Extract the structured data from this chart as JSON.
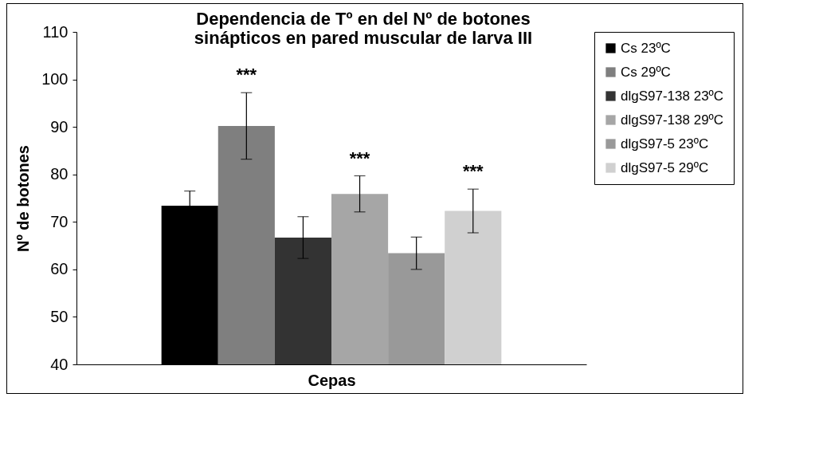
{
  "chart_data": {
    "type": "bar",
    "title": "Dependencia de Tº en del Nº de botones\nsinápticos en pared muscular de larva III",
    "xlabel": "Cepas",
    "ylabel": "Nº de botones",
    "categories": [
      null
    ],
    "series": [
      {
        "name": "Cs 23ºC",
        "color": "#000000",
        "values": [
          73.4
        ],
        "errors": [
          3.1
        ]
      },
      {
        "name": "Cs 29ºC",
        "color": "#7f7f7f",
        "values": [
          90.2
        ],
        "errors": [
          7
        ],
        "value_labels": [
          "***"
        ]
      },
      {
        "name": "dlgS97-138 23ºC",
        "color": "#333333",
        "values": [
          66.7
        ],
        "errors": [
          4.4
        ]
      },
      {
        "name": "dlgS97-138 29ºC",
        "color": "#a6a6a6",
        "values": [
          75.9
        ],
        "errors": [
          3.8
        ],
        "value_labels": [
          "***"
        ]
      },
      {
        "name": "dlgS97-5 23ºC",
        "color": "#999999",
        "values": [
          63.4
        ],
        "errors": [
          3.4
        ]
      },
      {
        "name": "dlgS97-5 29ºC",
        "color": "#d0d0d0",
        "values": [
          72.3
        ],
        "errors": [
          4.6
        ],
        "value_labels": [
          "***"
        ]
      }
    ],
    "ylim": [
      40,
      110
    ],
    "yticks": [
      40,
      50,
      60,
      70,
      80,
      90,
      100,
      110
    ],
    "tick_labels": "y",
    "legend": "right",
    "grid": false
  }
}
